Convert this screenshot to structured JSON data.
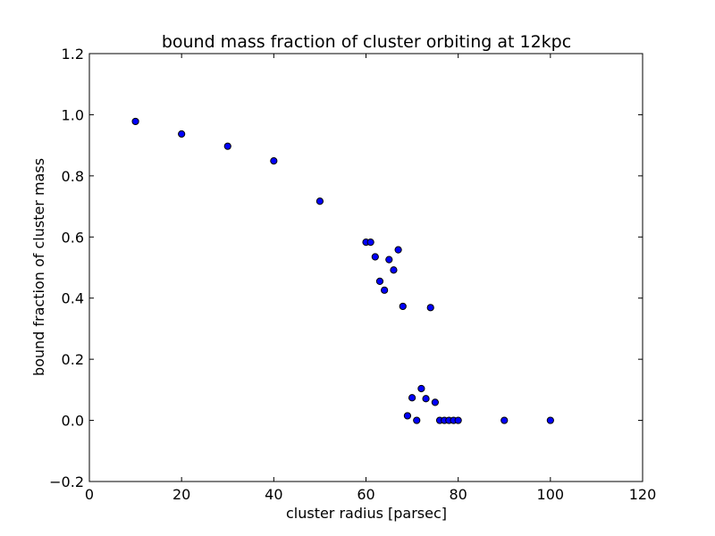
{
  "chart_data": {
    "type": "scatter",
    "title": "bound mass fraction of cluster orbiting at 12kpc",
    "xlabel": "cluster radius [parsec]",
    "ylabel": "bound fraction of cluster mass",
    "xlim": [
      0,
      120
    ],
    "ylim": [
      -0.2,
      1.2
    ],
    "xticks": [
      "0",
      "20",
      "40",
      "60",
      "80",
      "100",
      "120"
    ],
    "yticks": [
      "−0.2",
      "0.0",
      "0.2",
      "0.4",
      "0.6",
      "0.8",
      "1.0",
      "1.2"
    ],
    "grid": false,
    "marker_color": "#0000ff",
    "points": [
      {
        "x": 10,
        "y": 0.978
      },
      {
        "x": 20,
        "y": 0.937
      },
      {
        "x": 30,
        "y": 0.897
      },
      {
        "x": 40,
        "y": 0.849
      },
      {
        "x": 50,
        "y": 0.717
      },
      {
        "x": 60,
        "y": 0.583
      },
      {
        "x": 61,
        "y": 0.583
      },
      {
        "x": 62,
        "y": 0.535
      },
      {
        "x": 63,
        "y": 0.455
      },
      {
        "x": 64,
        "y": 0.426
      },
      {
        "x": 65,
        "y": 0.526
      },
      {
        "x": 66,
        "y": 0.492
      },
      {
        "x": 67,
        "y": 0.558
      },
      {
        "x": 68,
        "y": 0.373
      },
      {
        "x": 69,
        "y": 0.015
      },
      {
        "x": 70,
        "y": 0.074
      },
      {
        "x": 71,
        "y": 0.0
      },
      {
        "x": 72,
        "y": 0.104
      },
      {
        "x": 73,
        "y": 0.071
      },
      {
        "x": 74,
        "y": 0.369
      },
      {
        "x": 75,
        "y": 0.059
      },
      {
        "x": 76,
        "y": 0.0
      },
      {
        "x": 77,
        "y": 0.0
      },
      {
        "x": 78,
        "y": 0.0
      },
      {
        "x": 79,
        "y": 0.0
      },
      {
        "x": 80,
        "y": 0.0
      },
      {
        "x": 90,
        "y": 0.0
      },
      {
        "x": 100,
        "y": 0.0
      }
    ]
  }
}
